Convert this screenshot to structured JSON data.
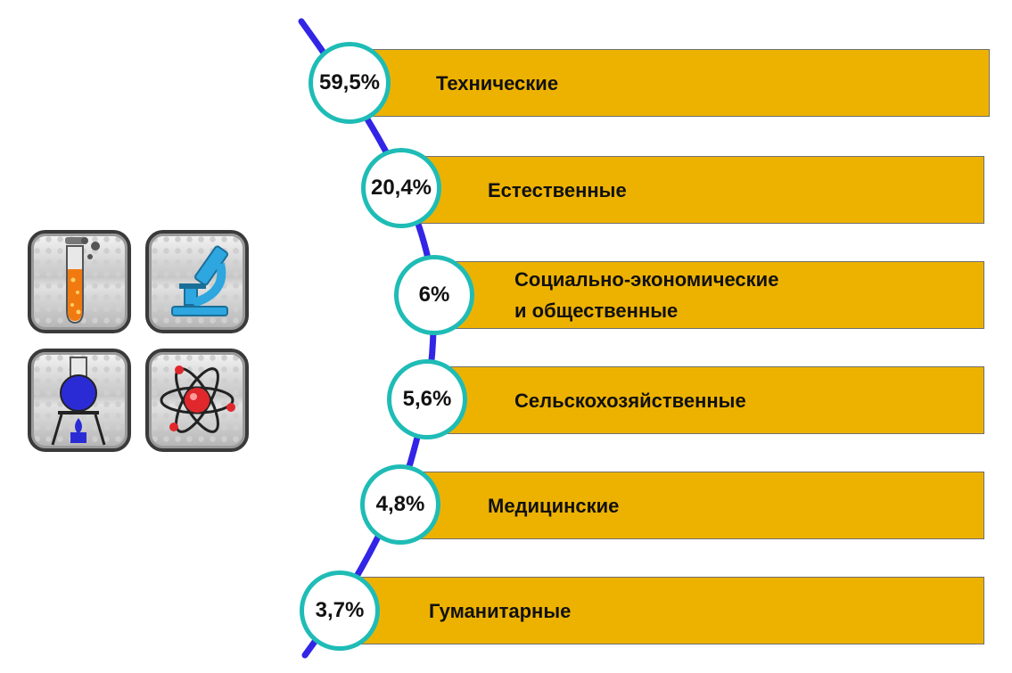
{
  "colors": {
    "bar": "#edb200",
    "ring": "#1fbcb6",
    "curve": "#3225e6"
  },
  "icons": [
    "test-tube-icon",
    "microscope-icon",
    "flask-burner-icon",
    "atom-icon"
  ],
  "items": [
    {
      "percent": "59,5%",
      "label": "Технические"
    },
    {
      "percent": "20,4%",
      "label": "Естественные"
    },
    {
      "percent": "6%",
      "label": "Социально-экономические\nи общественные"
    },
    {
      "percent": "5,6%",
      "label": "Сельскохозяйственные"
    },
    {
      "percent": "4,8%",
      "label": "Медицинские"
    },
    {
      "percent": "3,7%",
      "label": "Гуманитарные"
    }
  ]
}
